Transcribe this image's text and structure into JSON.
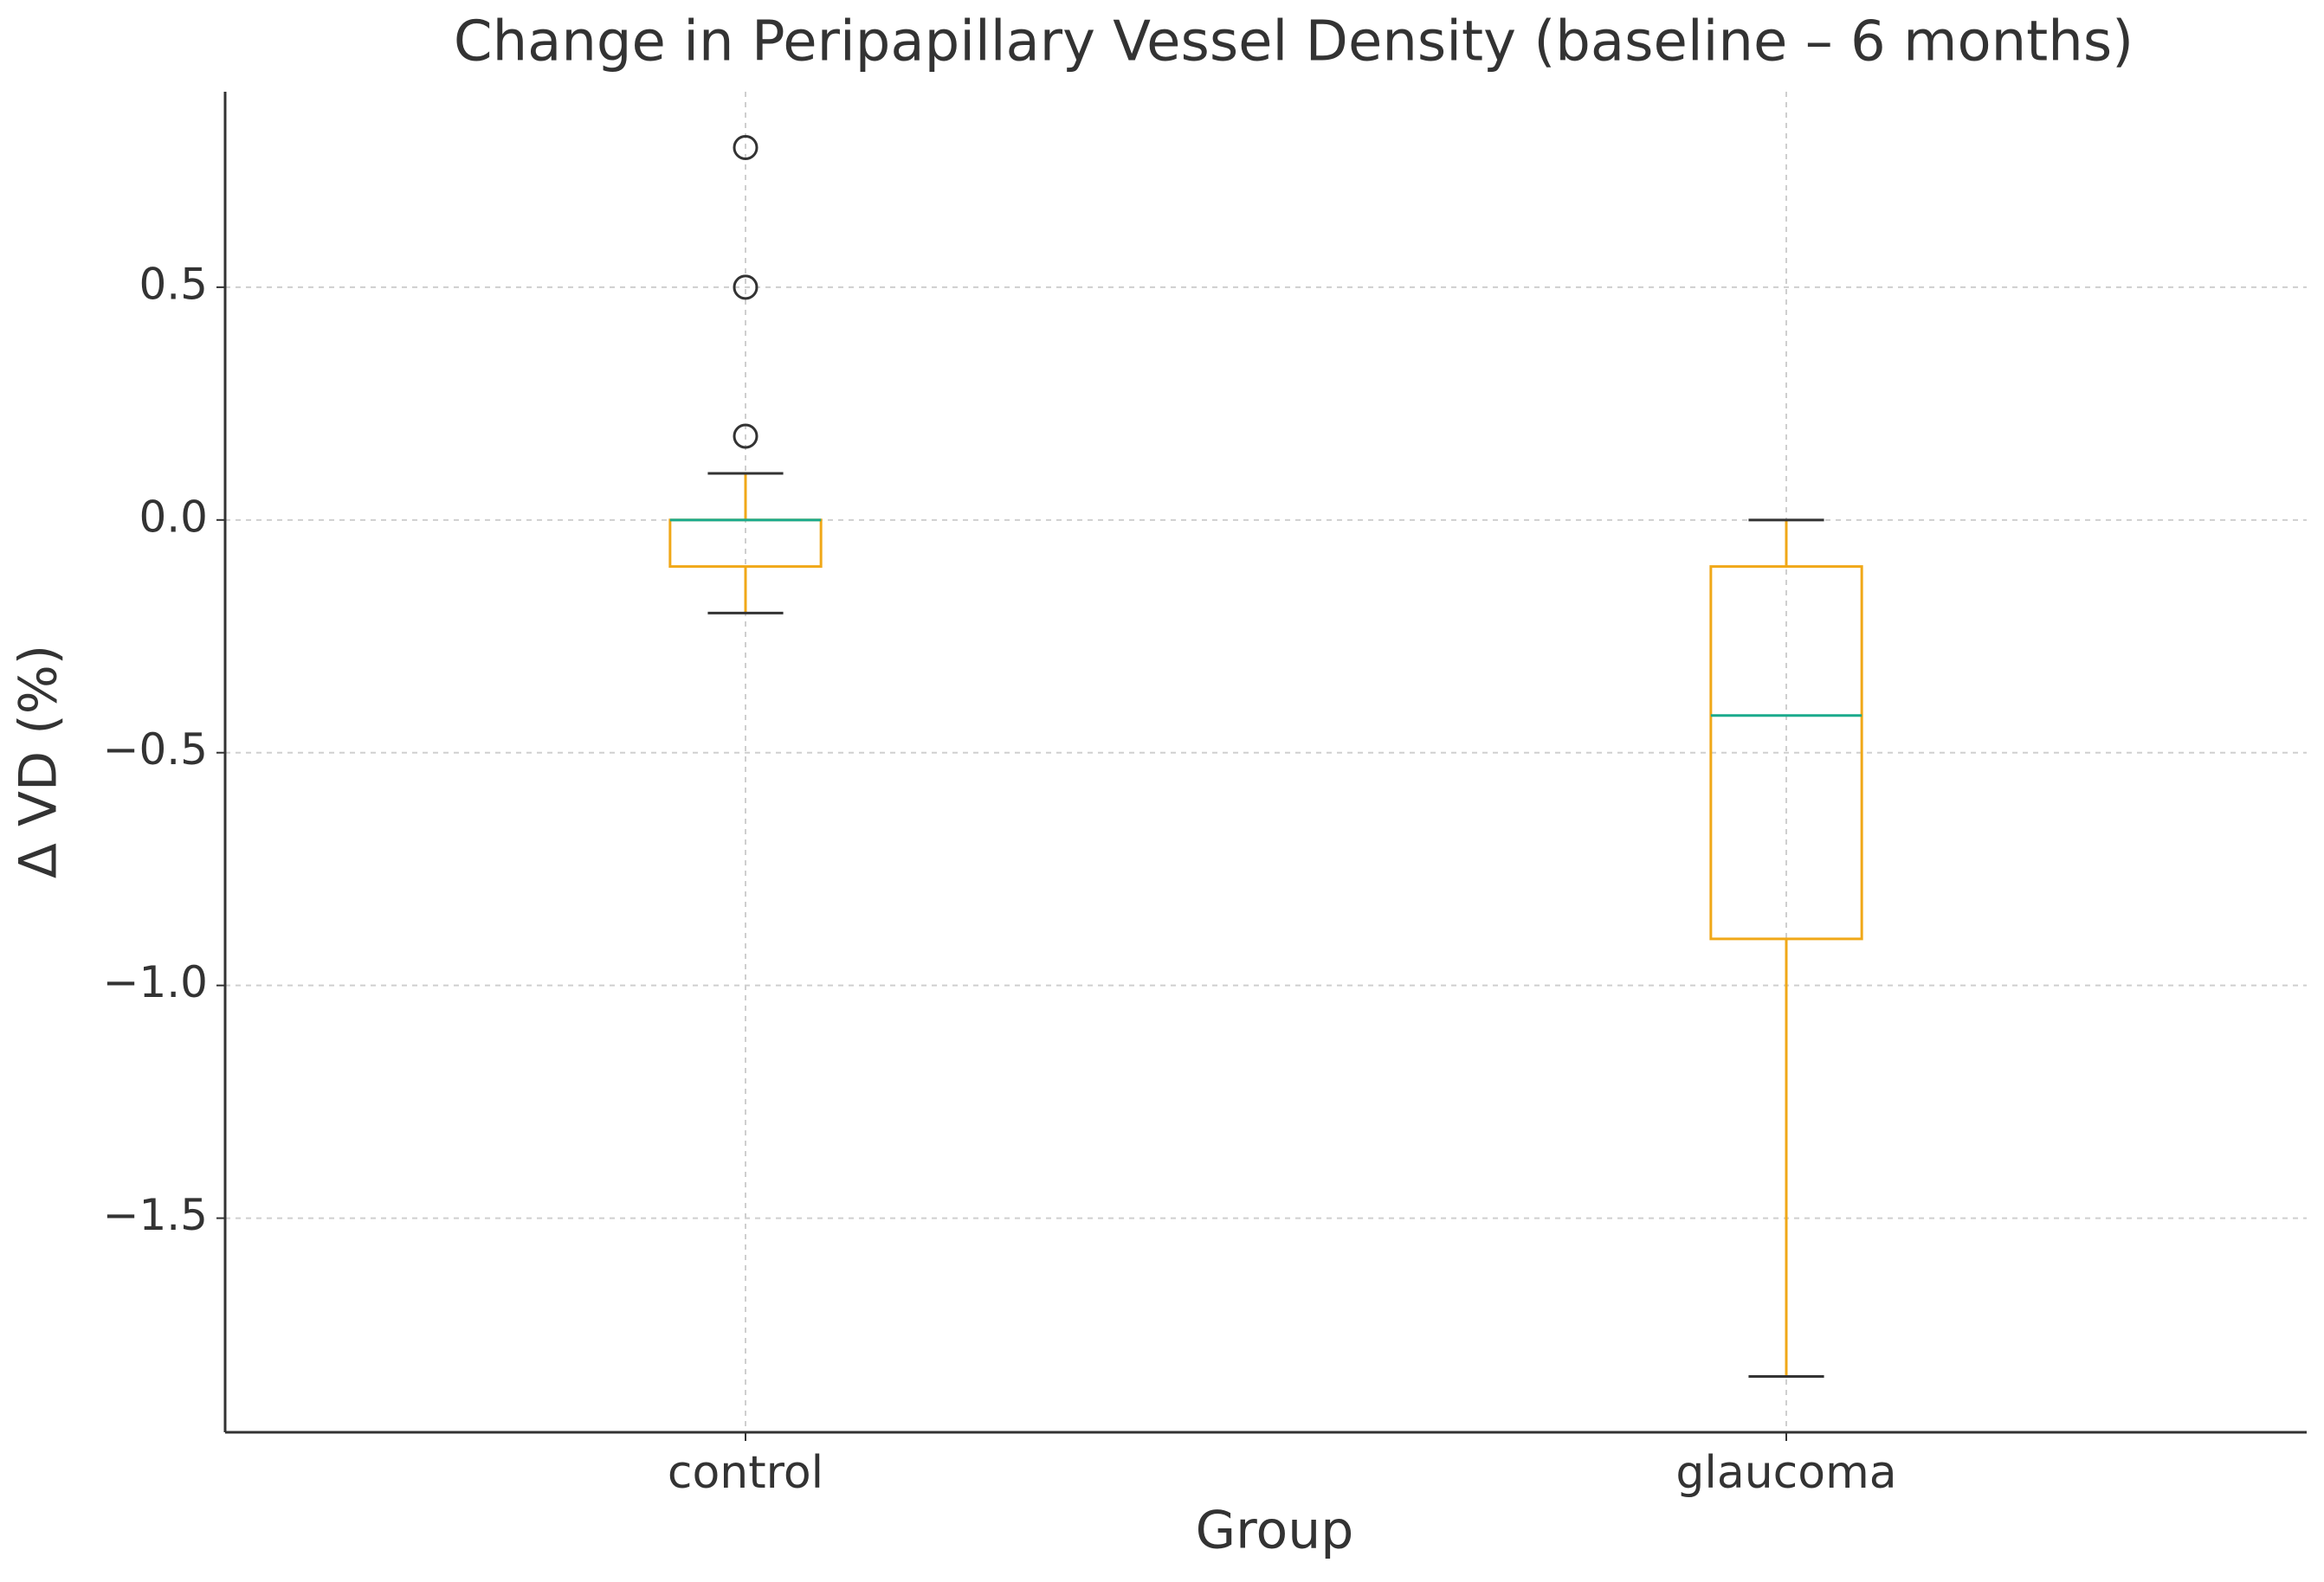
{
  "chart_data": {
    "type": "box",
    "title": "Change in Peripapillary Vessel Density (baseline – 6 months)",
    "x_label": "Group",
    "y_label": "Δ VD (%)",
    "categories": [
      "control",
      "glaucoma"
    ],
    "boxes": [
      {
        "whislo": -0.2,
        "q1": -0.1,
        "med": 0.0,
        "q3": 0.0,
        "whishi": 0.1,
        "fliers": [
          0.8,
          0.5,
          0.18
        ]
      },
      {
        "whislo": -1.84,
        "q1": -0.9,
        "med": -0.42,
        "q3": -0.1,
        "whishi": 0.0,
        "fliers": []
      }
    ],
    "box_color": "#f0a818",
    "median_color": "#1aaa8c",
    "cap_color": "#333333",
    "ylim": [
      -1.96,
      0.92
    ],
    "yticks": [
      {
        "value": -1.5,
        "label": "−1.5"
      },
      {
        "value": -1.0,
        "label": "−1.0"
      },
      {
        "value": -0.5,
        "label": "−0.5"
      },
      {
        "value": 0,
        "label": "0.0"
      },
      0.5
    ],
    "grid": true
  }
}
